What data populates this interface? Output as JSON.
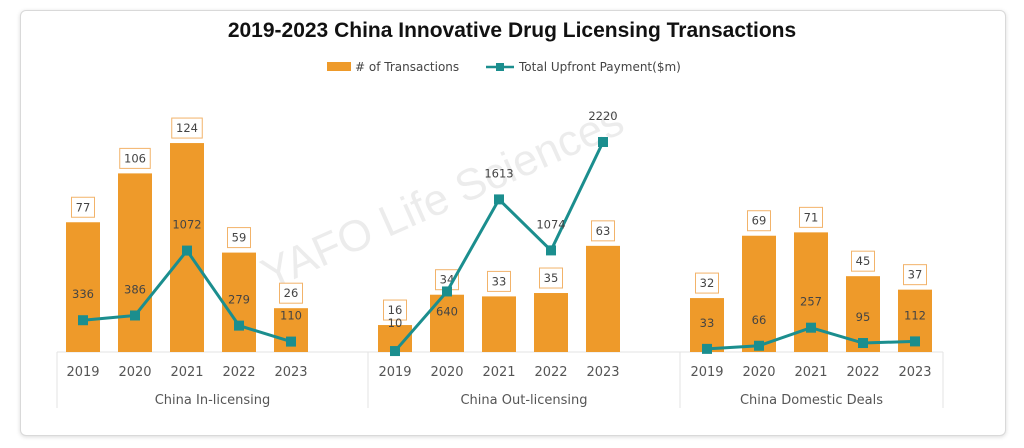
{
  "chart_data": {
    "type": "bar",
    "title": "2019-2023 China Innovative Drug Licensing Transactions",
    "watermark": "YAFO Life Sciences",
    "legend_position": "top-center",
    "colors": {
      "bar": "#EE9A2A",
      "line": "#1B8E8E"
    },
    "categories": [
      "2019",
      "2020",
      "2021",
      "2022",
      "2023"
    ],
    "series_names": {
      "bar": "# of Transactions",
      "line": "Total Upfront Payment($m)"
    },
    "y_left_range": [
      0,
      130
    ],
    "y_right_range": [
      0,
      2400
    ],
    "groups": [
      {
        "name": "China In-licensing",
        "transactions": [
          77,
          106,
          124,
          59,
          26
        ],
        "upfront": [
          336,
          386,
          1072,
          279,
          110
        ]
      },
      {
        "name": "China Out-licensing",
        "transactions": [
          16,
          34,
          33,
          35,
          63
        ],
        "upfront": [
          10,
          640,
          1613,
          1074,
          2220
        ]
      },
      {
        "name": "China Domestic Deals",
        "transactions": [
          32,
          69,
          71,
          45,
          37
        ],
        "upfront": [
          33,
          66,
          257,
          95,
          112
        ]
      }
    ]
  }
}
